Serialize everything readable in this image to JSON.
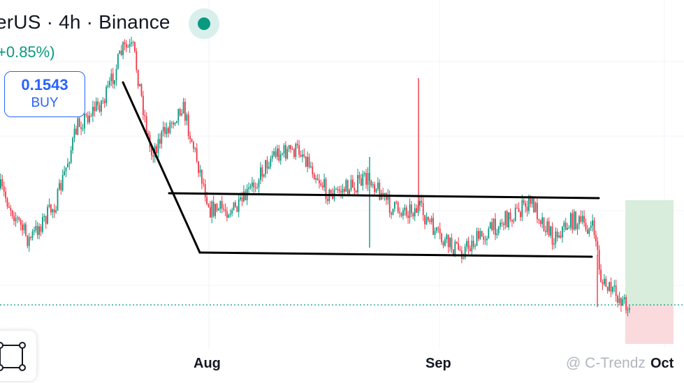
{
  "header": {
    "symbol_title": "erUS · 4h · Binance",
    "price_change": "+0.85%)"
  },
  "order_button": {
    "price": "0.1543",
    "label": "BUY"
  },
  "x_axis": {
    "labels": [
      "Aug",
      "Sep",
      "Oct"
    ]
  },
  "watermark": "@ C-Trendz",
  "colors": {
    "up": "#089981",
    "down": "#f23645",
    "accent": "#2962ff",
    "trendline": "#000000",
    "profit_zone": "#d8eddb",
    "loss_zone": "#fadadd",
    "grid": "#f0f3fa"
  },
  "chart_data": {
    "type": "candlestick",
    "timeframe": "4h",
    "exchange": "Binance",
    "x_tick_labels": [
      "Aug",
      "Sep",
      "Oct"
    ],
    "current_price": 0.1543,
    "drawings": [
      "descending trendline",
      "consolidation channel upper line",
      "consolidation channel lower line",
      "long position tool (profit/loss zones)"
    ]
  },
  "icons": {
    "drawing_tool": "rectangle-tool-icon",
    "status": "market-status-dot-icon"
  }
}
